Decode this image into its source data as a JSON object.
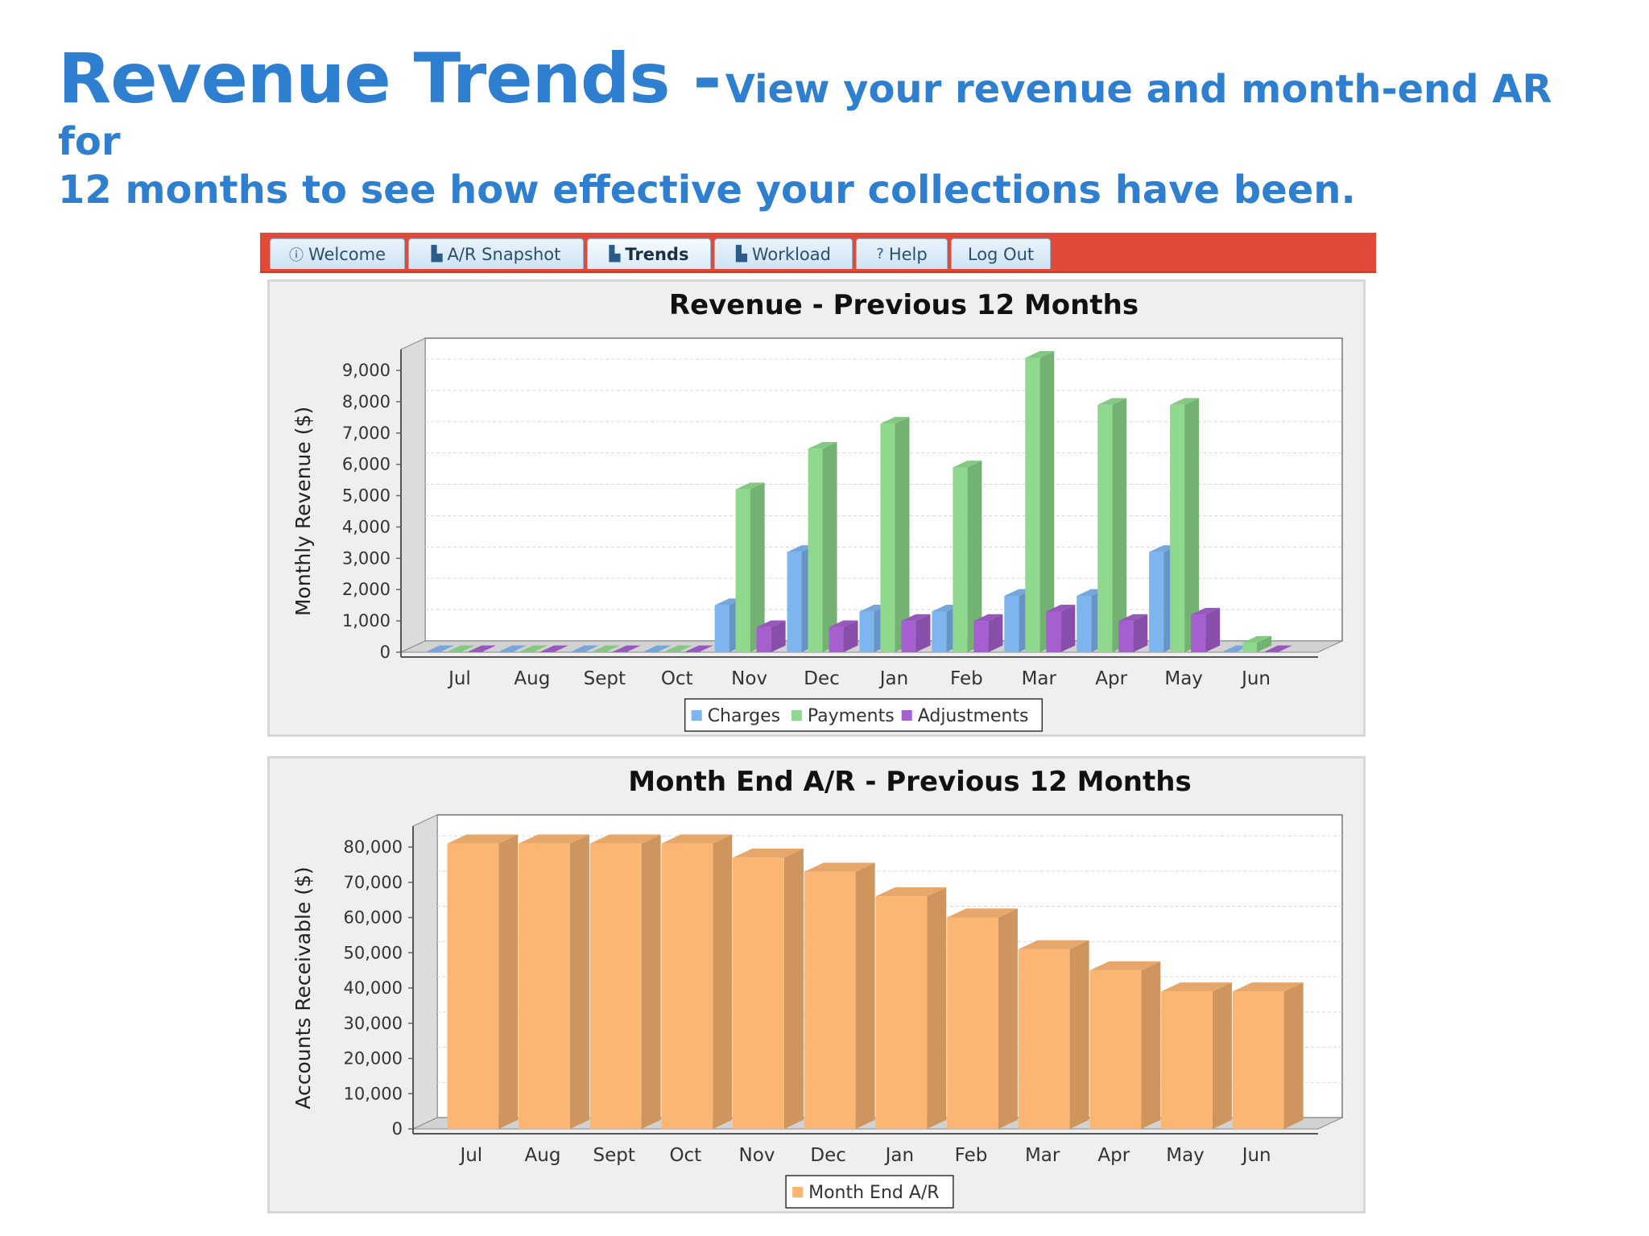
{
  "headline": {
    "title": "Revenue Trends -",
    "subtitle_part1": "View your revenue and month-end AR for",
    "subtitle_part2": "12 months to see how effective your collections have been."
  },
  "tabs": [
    {
      "label": "Welcome",
      "icon": "info-icon",
      "active": false
    },
    {
      "label": "A/R Snapshot",
      "icon": "bar-chart-icon",
      "active": false
    },
    {
      "label": "Trends",
      "icon": "bar-chart-icon",
      "active": true
    },
    {
      "label": "Workload",
      "icon": "bar-chart-icon",
      "active": false
    },
    {
      "label": "Help",
      "icon": "question-icon",
      "active": false
    },
    {
      "label": "Log Out",
      "icon": "",
      "active": false
    }
  ],
  "colors": {
    "tabbar": "#e04a38",
    "charges": "#7fb5ee",
    "payments": "#8ed98e",
    "adjustments": "#a55fcf",
    "month_end_ar": "#fbb673",
    "headline": "#2f7fd0"
  },
  "chart_data": [
    {
      "type": "bar",
      "title": "Revenue  -  Previous 12 Months",
      "xlabel": "",
      "ylabel": "Monthly Revenue ($)",
      "ylim": [
        0,
        9000
      ],
      "yticks": [
        0,
        1000,
        2000,
        3000,
        4000,
        5000,
        6000,
        7000,
        8000,
        9000
      ],
      "ytick_labels": [
        "0",
        "1,000",
        "2,000",
        "3,000",
        "4,000",
        "5,000",
        "6,000",
        "7,000",
        "8,000",
        "9,000"
      ],
      "categories": [
        "Jul",
        "Aug",
        "Sept",
        "Oct",
        "Nov",
        "Dec",
        "Jan",
        "Feb",
        "Mar",
        "Apr",
        "May",
        "Jun"
      ],
      "series": [
        {
          "name": "Charges",
          "values": [
            0,
            0,
            0,
            0,
            1500,
            3200,
            1300,
            1300,
            1800,
            1800,
            3200,
            0
          ]
        },
        {
          "name": "Payments",
          "values": [
            0,
            0,
            0,
            0,
            5200,
            6500,
            7300,
            5900,
            9400,
            7900,
            7900,
            300
          ]
        },
        {
          "name": "Adjustments",
          "values": [
            0,
            0,
            0,
            0,
            800,
            800,
            1000,
            1000,
            1300,
            1000,
            1200,
            0
          ]
        }
      ],
      "legend": "bottom-center",
      "grid": true
    },
    {
      "type": "bar",
      "title": "Month End A/R  -  Previous 12 Months",
      "xlabel": "",
      "ylabel": "Accounts Receivable ($)",
      "ylim": [
        0,
        80000
      ],
      "yticks": [
        0,
        10000,
        20000,
        30000,
        40000,
        50000,
        60000,
        70000,
        80000
      ],
      "ytick_labels": [
        "0",
        "10,000",
        "20,000",
        "30,000",
        "40,000",
        "50,000",
        "60,000",
        "70,000",
        "80,000"
      ],
      "categories": [
        "Jul",
        "Aug",
        "Sept",
        "Oct",
        "Nov",
        "Dec",
        "Jan",
        "Feb",
        "Mar",
        "Apr",
        "May",
        "Jun"
      ],
      "series": [
        {
          "name": "Month End A/R",
          "values": [
            81000,
            81000,
            81000,
            81000,
            77000,
            73000,
            66000,
            60000,
            51000,
            45000,
            39000,
            39000
          ]
        }
      ],
      "legend": "bottom-center",
      "grid": true
    }
  ]
}
